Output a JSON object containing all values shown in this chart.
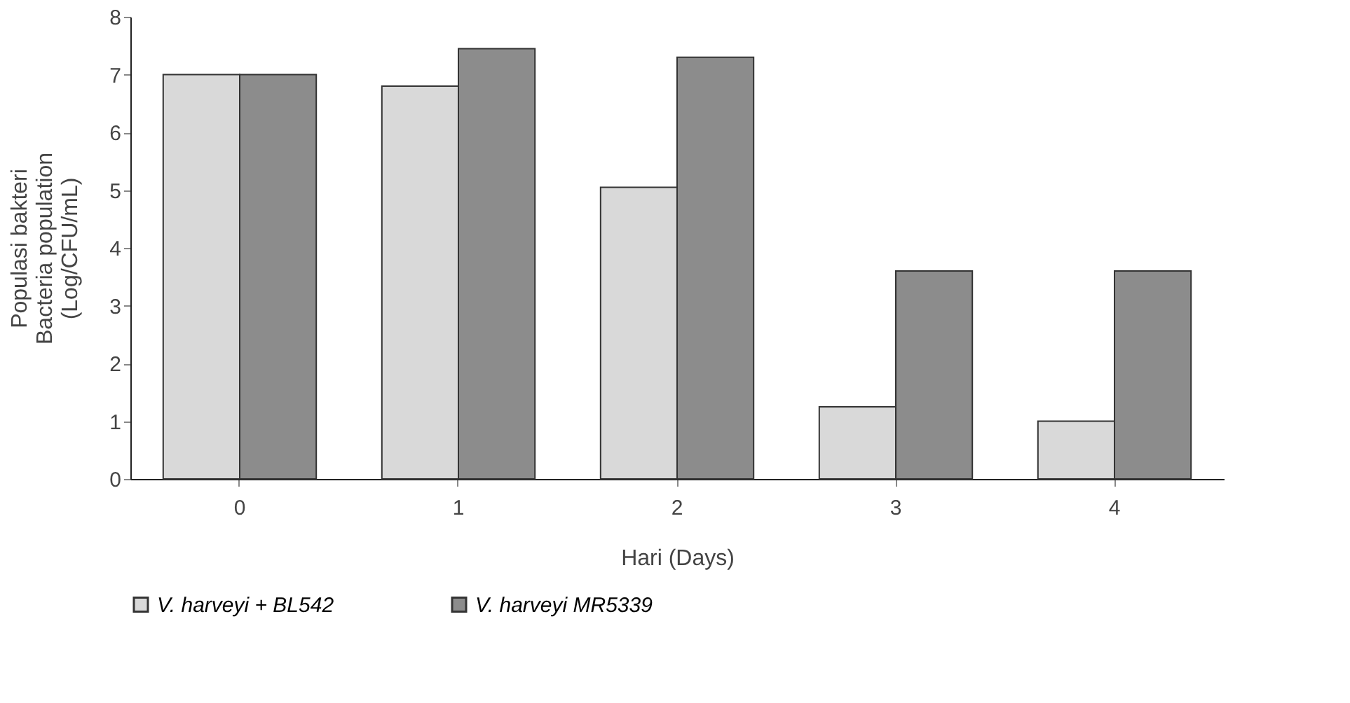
{
  "chart_data": {
    "type": "bar",
    "xlabel": "Hari (Days)",
    "ylabel": "Populasi bakteri\nBacteria population\n(Log/CFU/mL)",
    "categories": [
      "0",
      "1",
      "2",
      "3",
      "4"
    ],
    "series": [
      {
        "name": "V. harveyi + BL542",
        "color": "#d9d9d9",
        "values": [
          7.0,
          6.8,
          5.05,
          1.25,
          1.0
        ]
      },
      {
        "name": "V. harveyi MR5339",
        "color": "#8c8c8c",
        "values": [
          7.0,
          7.45,
          7.3,
          3.6,
          3.6
        ]
      }
    ],
    "ylim": [
      0,
      8
    ],
    "yticks": [
      0,
      1,
      2,
      3,
      4,
      5,
      6,
      7,
      8
    ],
    "grid": false,
    "legend": "bottom"
  }
}
